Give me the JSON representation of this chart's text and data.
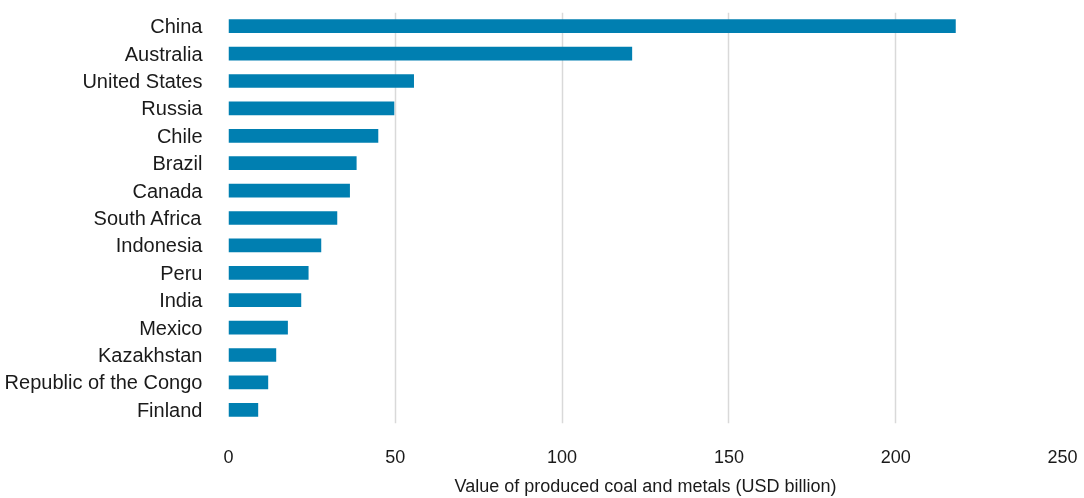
{
  "chart_data": {
    "type": "bar",
    "orientation": "horizontal",
    "categories": [
      "China",
      "Australia",
      "United States",
      "Russia",
      "Chile",
      "Brazil",
      "Canada",
      "South Africa",
      "Indonesia",
      "Peru",
      "India",
      "Mexico",
      "Kazakhstan",
      "Republic of the Congo",
      "Finland"
    ],
    "values": [
      218,
      121,
      55.6,
      49.7,
      44.9,
      38.4,
      36.4,
      32.6,
      27.8,
      24.0,
      21.8,
      17.8,
      14.3,
      11.9,
      8.9
    ],
    "color": "#007fb1",
    "xlabel": "Value of produced coal and metals (USD billion)",
    "xlim": [
      0,
      250
    ],
    "xticks": [
      0,
      50,
      100,
      150,
      200,
      250
    ],
    "grid": "x"
  }
}
